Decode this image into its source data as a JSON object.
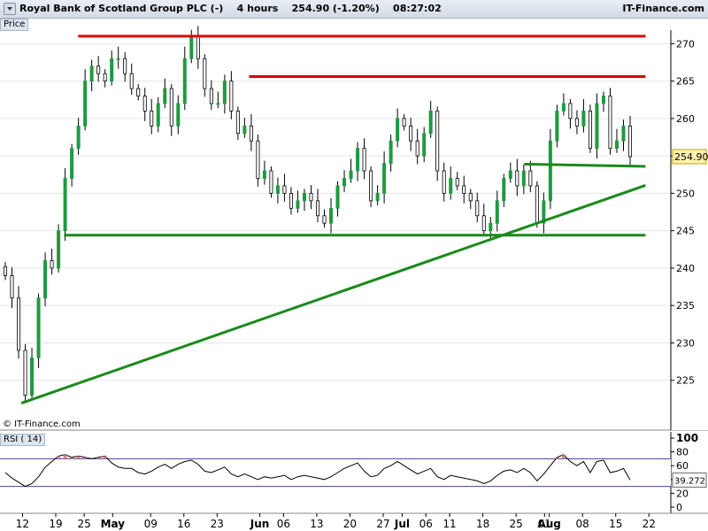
{
  "header": {
    "title": "Royal Bank of Scotland Group PLC (-)",
    "interval": "4 hours",
    "quote": "254.90 (-1.20%)",
    "time": "08:27:02",
    "brand": "IT-Finance.com"
  },
  "panels": {
    "price_label": "Price",
    "rsi_label": "RSI ( 14)",
    "watermark": "© IT-Finance.com"
  },
  "chart_data": [
    {
      "type": "candlestick",
      "title": "Royal Bank of Scotland Group PLC (-)",
      "ylim": [
        220,
        273
      ],
      "y_ticks": [
        225,
        230,
        235,
        240,
        245,
        250,
        255,
        260,
        265,
        270
      ],
      "last_price": "254.90",
      "series": [
        {
          "name": "close",
          "values": [
            239,
            236,
            229,
            223,
            228,
            236,
            241,
            240,
            245,
            252,
            256,
            259,
            265,
            267,
            266,
            265,
            268,
            268,
            266,
            264,
            263,
            261,
            259,
            262,
            264,
            259,
            262,
            268,
            271,
            268,
            264,
            262,
            262,
            265,
            261,
            258,
            259,
            257,
            252,
            253,
            250,
            251,
            250,
            248,
            249,
            250,
            249,
            247,
            246,
            248,
            251,
            252,
            253,
            256,
            253,
            249,
            250,
            254,
            257,
            260,
            259,
            257,
            255,
            258,
            261,
            253,
            250,
            252,
            251,
            250,
            249,
            247,
            245,
            246,
            249,
            252,
            253,
            251,
            253,
            251,
            246,
            249,
            257,
            261,
            262,
            260,
            259,
            261,
            256,
            262,
            263,
            256,
            257,
            259,
            254.9
          ]
        }
      ],
      "annotations": [
        {
          "type": "resistance",
          "color": "#e00000",
          "from": [
            "Apr 25",
            271
          ],
          "to": [
            "Aug 21",
            271
          ]
        },
        {
          "type": "resistance",
          "color": "#e00000",
          "from": [
            "May 30",
            265.6
          ],
          "to": [
            "Aug 21",
            265.6
          ]
        },
        {
          "type": "support",
          "color": "#1a8a1a",
          "from": [
            "Apr 22",
            244.4
          ],
          "to": [
            "Aug 21",
            244.4
          ]
        },
        {
          "type": "support",
          "color": "#1a8a1a",
          "from": [
            "Jul 27",
            253.9
          ],
          "to": [
            "Aug 21",
            253.6
          ]
        },
        {
          "type": "trendline",
          "color": "#1a8a1a",
          "from": [
            "Apr 13",
            222
          ],
          "to": [
            "Aug 21",
            251
          ]
        }
      ]
    },
    {
      "type": "line",
      "title": "RSI ( 14)",
      "ylim": [
        0,
        100
      ],
      "y_ticks": [
        0,
        20,
        40,
        60,
        80,
        100
      ],
      "guide_levels": [
        30,
        70
      ],
      "last_value": "39.272",
      "series": [
        {
          "name": "RSI",
          "values": [
            50,
            42,
            36,
            30,
            34,
            44,
            58,
            66,
            74,
            76,
            72,
            74,
            72,
            70,
            72,
            74,
            64,
            58,
            56,
            56,
            50,
            48,
            52,
            58,
            62,
            56,
            62,
            66,
            68,
            62,
            52,
            50,
            54,
            58,
            48,
            44,
            48,
            44,
            40,
            44,
            42,
            44,
            46,
            40,
            44,
            46,
            44,
            42,
            40,
            44,
            50,
            56,
            60,
            64,
            52,
            44,
            46,
            56,
            60,
            66,
            60,
            54,
            48,
            52,
            56,
            44,
            40,
            46,
            44,
            42,
            40,
            38,
            34,
            38,
            46,
            52,
            54,
            50,
            56,
            50,
            38,
            48,
            60,
            72,
            76,
            66,
            60,
            66,
            50,
            66,
            68,
            50,
            52,
            56,
            39.272
          ]
        }
      ]
    }
  ],
  "x_axis": {
    "labels": [
      {
        "text": "12",
        "day": 12
      },
      {
        "text": "19",
        "day": 19
      },
      {
        "text": "25",
        "day": 25
      },
      {
        "text": "May",
        "day": 31,
        "bold": true
      },
      {
        "text": "09",
        "day": 39
      },
      {
        "text": "16",
        "day": 46
      },
      {
        "text": "23",
        "day": 53
      },
      {
        "text": "Jun",
        "day": 62,
        "bold": true
      },
      {
        "text": "06",
        "day": 67
      },
      {
        "text": "13",
        "day": 74
      },
      {
        "text": "20",
        "day": 81
      },
      {
        "text": "27",
        "day": 88
      },
      {
        "text": "Jul",
        "day": 92,
        "bold": true
      },
      {
        "text": "06",
        "day": 97
      },
      {
        "text": "11",
        "day": 102
      },
      {
        "text": "18",
        "day": 109
      },
      {
        "text": "25",
        "day": 116
      },
      {
        "text": "01",
        "day": 122
      },
      {
        "text": "Aug",
        "day": 123,
        "bold": true
      },
      {
        "text": "08",
        "day": 130
      },
      {
        "text": "15",
        "day": 137
      },
      {
        "text": "22",
        "day": 144
      }
    ]
  },
  "colors": {
    "up": "#1f9a3f",
    "down": "#000000",
    "resistance": "#e00000",
    "support": "#1a8a1a"
  }
}
